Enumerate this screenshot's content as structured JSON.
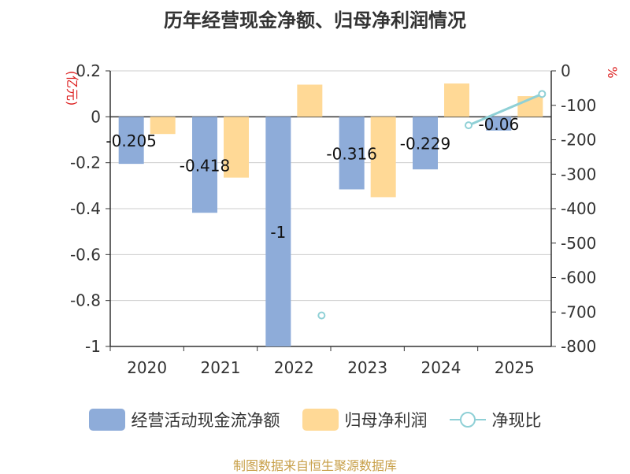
{
  "title": "历年经营现金净额、归母净利润情况",
  "footer": "制图数据来自恒生聚源数据库",
  "chart_data": {
    "type": "bar",
    "categories": [
      "2020",
      "2021",
      "2022",
      "2023",
      "2024",
      "2025"
    ],
    "series": [
      {
        "name": "经营活动现金流净额",
        "axis": "left",
        "color": "#8eacd9",
        "values": [
          -0.205,
          -0.418,
          -1,
          -0.316,
          -0.229,
          -0.06
        ],
        "labels": [
          "-0.205",
          "-0.418",
          "-1",
          "-0.316",
          "-0.229",
          "-0.06"
        ]
      },
      {
        "name": "归母净利润",
        "axis": "left",
        "color": "#ffd996",
        "values": [
          -0.075,
          -0.265,
          0.14,
          -0.35,
          0.145,
          0.09
        ]
      },
      {
        "name": "净现比",
        "axis": "right",
        "type": "line",
        "color": "#8fd0d6",
        "values": [
          null,
          null,
          -710,
          null,
          -158,
          -67
        ]
      }
    ],
    "y_left": {
      "label": "(亿元)",
      "ylim": [
        -1,
        0.2
      ],
      "ticks": [
        0.2,
        0,
        -0.2,
        -0.4,
        -0.6,
        -0.8,
        -1
      ],
      "tick_labels": [
        "0.2",
        "0",
        "-0.2",
        "-0.4",
        "-0.6",
        "-0.8",
        "-1"
      ]
    },
    "y_right": {
      "label": "%",
      "ylim": [
        -800,
        0
      ],
      "ticks": [
        0,
        -100,
        -200,
        -300,
        -400,
        -500,
        -600,
        -700,
        -800
      ],
      "tick_labels": [
        "0",
        "-100",
        "-200",
        "-300",
        "-400",
        "-500",
        "-600",
        "-700",
        "-800"
      ]
    },
    "grid": true,
    "legend": "bottom"
  }
}
